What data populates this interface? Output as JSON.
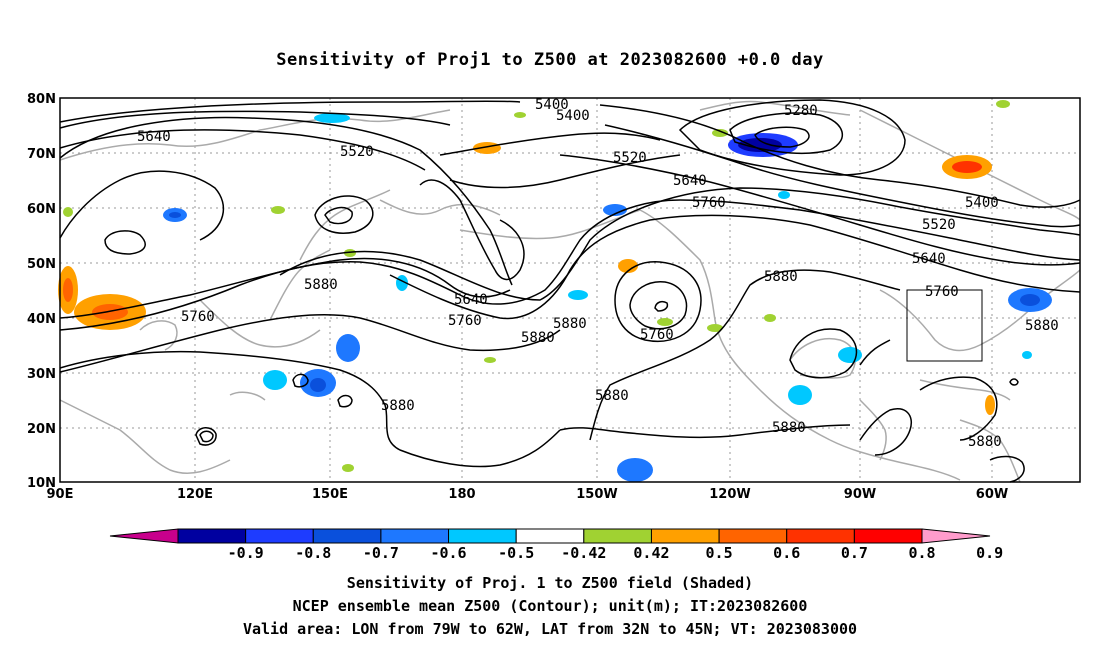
{
  "title": "Sensitivity of Proj1 to Z500 at 2023082600 +0.0 day",
  "lat_labels": [
    "80N",
    "70N",
    "60N",
    "50N",
    "40N",
    "30N",
    "20N",
    "10N"
  ],
  "lon_labels": [
    "90E",
    "120E",
    "150E",
    "180",
    "150W",
    "120W",
    "90W",
    "60W"
  ],
  "contour_labels": [
    "5400",
    "5400",
    "5280",
    "5640",
    "5520",
    "5520",
    "5640",
    "5760",
    "5400",
    "5520",
    "5640",
    "5760",
    "5880",
    "5880",
    "5760",
    "5640",
    "5760",
    "5880",
    "5880",
    "5760",
    "5880",
    "5880",
    "5880",
    "5880",
    "5880"
  ],
  "colorbar": {
    "ticks": [
      "-0.9",
      "-0.8",
      "-0.7",
      "-0.6",
      "-0.5",
      "-0.42",
      "0.42",
      "0.5",
      "0.6",
      "0.7",
      "0.8",
      "0.9"
    ],
    "colors": [
      "#c8008c",
      "#0000a0",
      "#1e3cff",
      "#0a50dc",
      "#1e78ff",
      "#00c8ff",
      "#ffffff",
      "#a0d232",
      "#ffa000",
      "#ff6400",
      "#ff3200",
      "#ff0000",
      "#ff9ccc"
    ]
  },
  "footer": {
    "line1": "Sensitivity of Proj. 1 to Z500 field (Shaded)",
    "line2": "NCEP ensemble mean Z500 (Contour); unit(m); IT:2023082600",
    "line3": "Valid area: LON from 79W to 62W, LAT from 32N to 45N; VT: 2023083000"
  }
}
